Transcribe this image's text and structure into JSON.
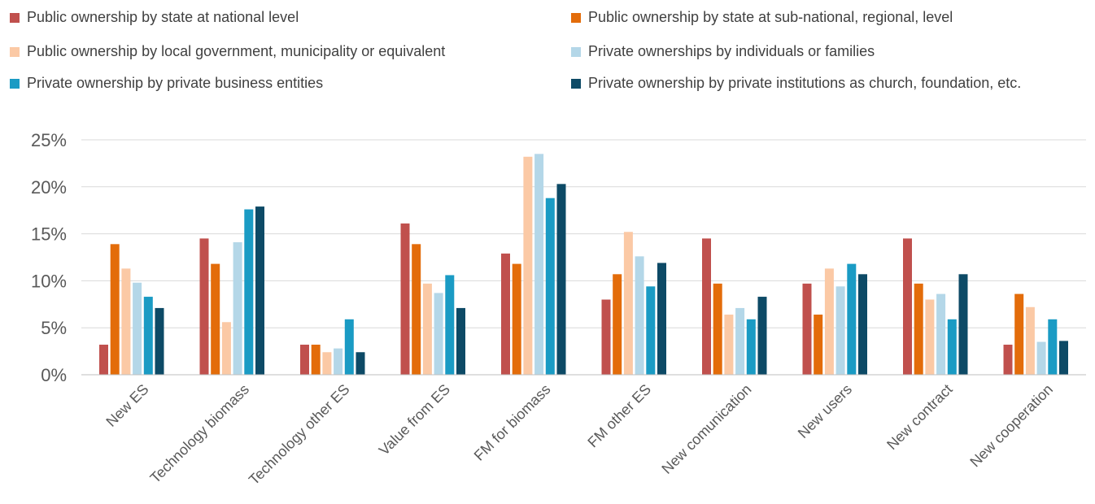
{
  "chart_data": {
    "type": "bar",
    "categories": [
      "New ES",
      "Technology biomass",
      "Technology other ES",
      "Value from ES",
      "FM for biomass",
      "FM other ES",
      "New comunication",
      "New users",
      "New contract",
      "New cooperation"
    ],
    "series": [
      {
        "name": "Public ownership by state at national level",
        "color": "#c0504d",
        "values": [
          0.032,
          0.145,
          0.032,
          0.161,
          0.129,
          0.08,
          0.145,
          0.097,
          0.145,
          0.032
        ]
      },
      {
        "name": "Public ownership by state at sub-national, regional, level",
        "color": "#e36c0a",
        "values": [
          0.139,
          0.118,
          0.032,
          0.139,
          0.118,
          0.107,
          0.097,
          0.064,
          0.097,
          0.086
        ]
      },
      {
        "name": "Public ownership by local government, municipality or equivalent",
        "color": "#fbc9a5",
        "values": [
          0.113,
          0.056,
          0.024,
          0.097,
          0.232,
          0.152,
          0.064,
          0.113,
          0.08,
          0.072
        ]
      },
      {
        "name": "Private ownerships by individuals or families",
        "color": "#b4d7e8",
        "values": [
          0.098,
          0.141,
          0.028,
          0.087,
          0.235,
          0.126,
          0.071,
          0.094,
          0.086,
          0.035
        ]
      },
      {
        "name": "Private ownership by private business entities",
        "color": "#1a9bc4",
        "values": [
          0.083,
          0.176,
          0.059,
          0.106,
          0.188,
          0.094,
          0.059,
          0.118,
          0.059,
          0.059
        ]
      },
      {
        "name": "Private ownership by private institutions as church, foundation, etc.",
        "color": "#0d4a66",
        "values": [
          0.071,
          0.179,
          0.024,
          0.071,
          0.203,
          0.119,
          0.083,
          0.107,
          0.107,
          0.036
        ]
      }
    ],
    "y_ticks": [
      "0%",
      "5%",
      "10%",
      "15%",
      "20%",
      "25%"
    ],
    "ylim": [
      0,
      0.25
    ],
    "grid": true,
    "legend_position": "top"
  }
}
